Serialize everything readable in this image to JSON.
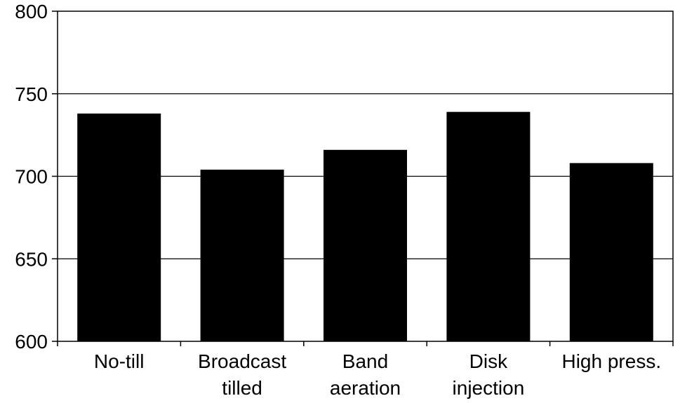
{
  "chart_data": {
    "type": "bar",
    "categories": [
      [
        "No-till"
      ],
      [
        "Broadcast",
        "tilled"
      ],
      [
        "Band",
        "aeration"
      ],
      [
        "Disk",
        "injection"
      ],
      [
        "High press."
      ]
    ],
    "values": [
      738,
      704,
      716,
      739,
      708
    ],
    "ylim": [
      600,
      800
    ],
    "yticks": [
      600,
      650,
      700,
      750,
      800
    ],
    "grid": true,
    "bar_color": "#000000",
    "grid_color": "#000000"
  }
}
